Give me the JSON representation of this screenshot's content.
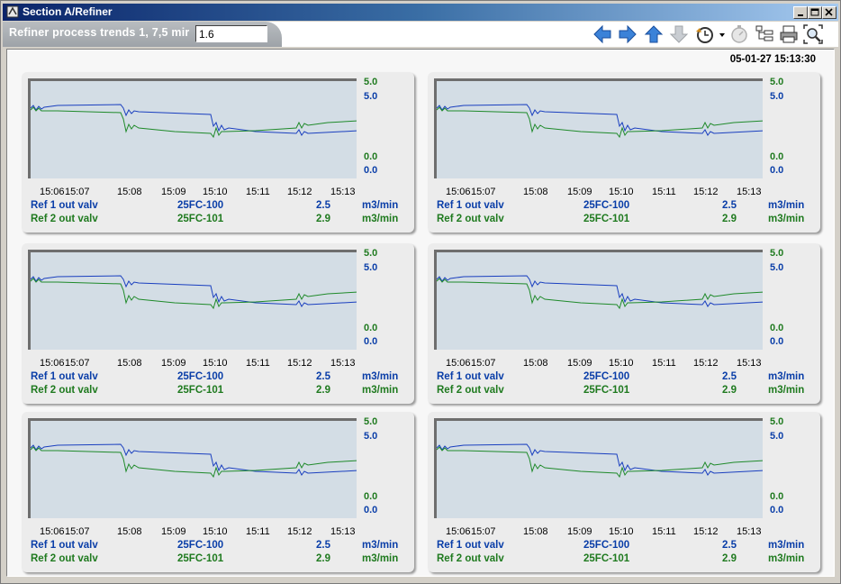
{
  "window": {
    "title": "Section A/Refiner"
  },
  "toolbar": {
    "tab_label": "Refiner process trends 1, 7,5 mir",
    "input_value": "1.6"
  },
  "timestamp": "05-01-27 15:13:30",
  "colors": {
    "series1": "#1a3fbf",
    "series2": "#1f8a2a",
    "plot_bg": "#d3dde5"
  },
  "panels": [
    {
      "y_green_max": "5.0",
      "y_blue_max": "5.0",
      "y_green_min": "0.0",
      "y_blue_min": "0.0",
      "x_ticks": [
        "15:06",
        "15:07",
        "15:08",
        "15:09",
        "15:10",
        "15:11",
        "15:12",
        "15:13"
      ],
      "rows": [
        {
          "name": "Ref 1 out valv",
          "tag": "25FC-100",
          "value": "2.5",
          "unit": "m3/min"
        },
        {
          "name": "Ref 2 out valv",
          "tag": "25FC-101",
          "value": "2.9",
          "unit": "m3/min"
        }
      ]
    },
    {
      "y_green_max": "5.0",
      "y_blue_max": "5.0",
      "y_green_min": "0.0",
      "y_blue_min": "0.0",
      "x_ticks": [
        "15:06",
        "15:07",
        "15:08",
        "15:09",
        "15:10",
        "15:11",
        "15:12",
        "15:13"
      ],
      "rows": [
        {
          "name": "Ref 1 out valv",
          "tag": "25FC-100",
          "value": "2.5",
          "unit": "m3/min"
        },
        {
          "name": "Ref 2 out valv",
          "tag": "25FC-101",
          "value": "2.9",
          "unit": "m3/min"
        }
      ]
    },
    {
      "y_green_max": "5.0",
      "y_blue_max": "5.0",
      "y_green_min": "0.0",
      "y_blue_min": "0.0",
      "x_ticks": [
        "15:06",
        "15:07",
        "15:08",
        "15:09",
        "15:10",
        "15:11",
        "15:12",
        "15:13"
      ],
      "rows": [
        {
          "name": "Ref 1 out valv",
          "tag": "25FC-100",
          "value": "2.5",
          "unit": "m3/min"
        },
        {
          "name": "Ref 2 out valv",
          "tag": "25FC-101",
          "value": "2.9",
          "unit": "m3/min"
        }
      ]
    },
    {
      "y_green_max": "5.0",
      "y_blue_max": "5.0",
      "y_green_min": "0.0",
      "y_blue_min": "0.0",
      "x_ticks": [
        "15:06",
        "15:07",
        "15:08",
        "15:09",
        "15:10",
        "15:11",
        "15:12",
        "15:13"
      ],
      "rows": [
        {
          "name": "Ref 1 out valv",
          "tag": "25FC-100",
          "value": "2.5",
          "unit": "m3/min"
        },
        {
          "name": "Ref 2 out valv",
          "tag": "25FC-101",
          "value": "2.9",
          "unit": "m3/min"
        }
      ]
    },
    {
      "y_green_max": "5.0",
      "y_blue_max": "5.0",
      "y_green_min": "0.0",
      "y_blue_min": "0.0",
      "x_ticks": [
        "15:06",
        "15:07",
        "15:08",
        "15:09",
        "15:10",
        "15:11",
        "15:12",
        "15:13"
      ],
      "rows": [
        {
          "name": "Ref 1 out valv",
          "tag": "25FC-100",
          "value": "2.5",
          "unit": "m3/min"
        },
        {
          "name": "Ref 2 out valv",
          "tag": "25FC-101",
          "value": "2.9",
          "unit": "m3/min"
        }
      ]
    },
    {
      "y_green_max": "5.0",
      "y_blue_max": "5.0",
      "y_green_min": "0.0",
      "y_blue_min": "0.0",
      "x_ticks": [
        "15:06",
        "15:07",
        "15:08",
        "15:09",
        "15:10",
        "15:11",
        "15:12",
        "15:13"
      ],
      "rows": [
        {
          "name": "Ref 1 out valv",
          "tag": "25FC-100",
          "value": "2.5",
          "unit": "m3/min"
        },
        {
          "name": "Ref 2 out valv",
          "tag": "25FC-101",
          "value": "2.9",
          "unit": "m3/min"
        }
      ]
    }
  ]
}
